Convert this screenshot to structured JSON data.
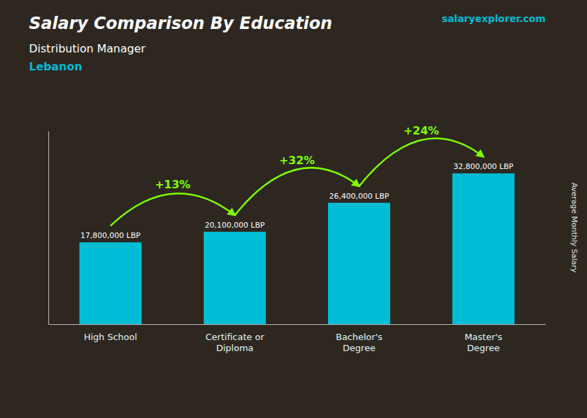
{
  "chart_data": {
    "type": "bar",
    "title": "Salary Comparison By Education",
    "subtitle": "Distribution Manager",
    "annotations": [
      "Lebanon",
      "salaryexplorer.com"
    ],
    "ylabel": "Average Monthly Salary",
    "categories": [
      "High School",
      "Certificate or\nDiploma",
      "Bachelor's\nDegree",
      "Master's\nDegree"
    ],
    "values": [
      17800000,
      20100000,
      26400000,
      32800000
    ],
    "value_labels": [
      "17,800,000 LBP",
      "20,100,000 LBP",
      "26,400,000 LBP",
      "32,800,000 LBP"
    ],
    "data_labels": true,
    "color": "#00bcd4",
    "changes": {
      "values": [
        13,
        32,
        24
      ],
      "value_labels": [
        "+13%",
        "+32%",
        "+24%"
      ],
      "color": "#7fff00"
    },
    "ylim": [
      0,
      42000000
    ],
    "grid": false,
    "tick_labels": false
  }
}
